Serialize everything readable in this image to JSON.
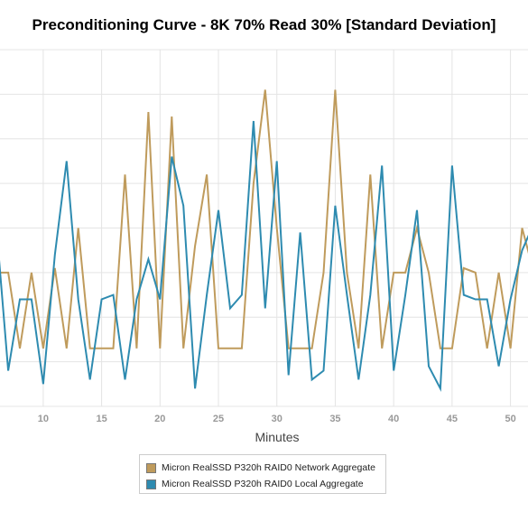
{
  "chart_data": {
    "type": "line",
    "title": "Preconditioning Curve - 8K 70% Read 30% [Standard Deviation]",
    "xlabel": "Minutes",
    "ylabel": "",
    "x_tick_labels": [
      "10",
      "15",
      "20",
      "25",
      "30",
      "35",
      "40",
      "45",
      "50"
    ],
    "x_ticks": [
      10,
      15,
      20,
      25,
      30,
      35,
      40,
      45,
      50
    ],
    "xlim": [
      6.3,
      51.5
    ],
    "ylim": [
      0,
      8
    ],
    "grid": true,
    "legend_position": "bottom",
    "x": [
      6,
      7,
      8,
      9,
      10,
      11,
      12,
      13,
      14,
      15,
      16,
      17,
      18,
      19,
      20,
      21,
      22,
      23,
      24,
      25,
      26,
      27,
      28,
      29,
      30,
      31,
      32,
      33,
      34,
      35,
      36,
      37,
      38,
      39,
      40,
      41,
      42,
      43,
      44,
      45,
      46,
      47,
      48,
      49,
      50,
      51,
      52
    ],
    "series": [
      {
        "name": "Micron RealSSD P320h RAID0 Network Aggregate",
        "color": "#bf9b5c",
        "values": [
          3.0,
          3.0,
          1.3,
          3.0,
          1.3,
          3.1,
          1.3,
          4.0,
          1.3,
          1.3,
          1.3,
          5.2,
          1.3,
          6.6,
          1.3,
          6.5,
          1.3,
          3.6,
          5.2,
          1.3,
          1.3,
          1.3,
          5.0,
          7.1,
          4.0,
          1.3,
          1.3,
          1.3,
          3.0,
          7.1,
          3.0,
          1.3,
          5.2,
          1.3,
          3.0,
          3.0,
          4.0,
          3.0,
          1.3,
          1.3,
          3.1,
          3.0,
          1.3,
          3.0,
          1.3,
          4.0,
          3.0
        ]
      },
      {
        "name": "Micron RealSSD P320h RAID0 Local Aggregate",
        "color": "#2e8bb0",
        "values": [
          4.0,
          0.8,
          2.4,
          2.4,
          0.5,
          3.4,
          5.5,
          2.4,
          0.6,
          2.4,
          2.5,
          0.6,
          2.4,
          3.3,
          2.4,
          5.6,
          4.5,
          0.4,
          2.5,
          4.4,
          2.2,
          2.5,
          6.4,
          2.2,
          5.5,
          0.7,
          3.9,
          0.6,
          0.8,
          4.5,
          2.5,
          0.6,
          2.5,
          5.4,
          0.8,
          2.5,
          4.4,
          0.9,
          0.4,
          5.4,
          2.5,
          2.4,
          2.4,
          0.9,
          2.4,
          3.5,
          4.1
        ]
      }
    ]
  }
}
